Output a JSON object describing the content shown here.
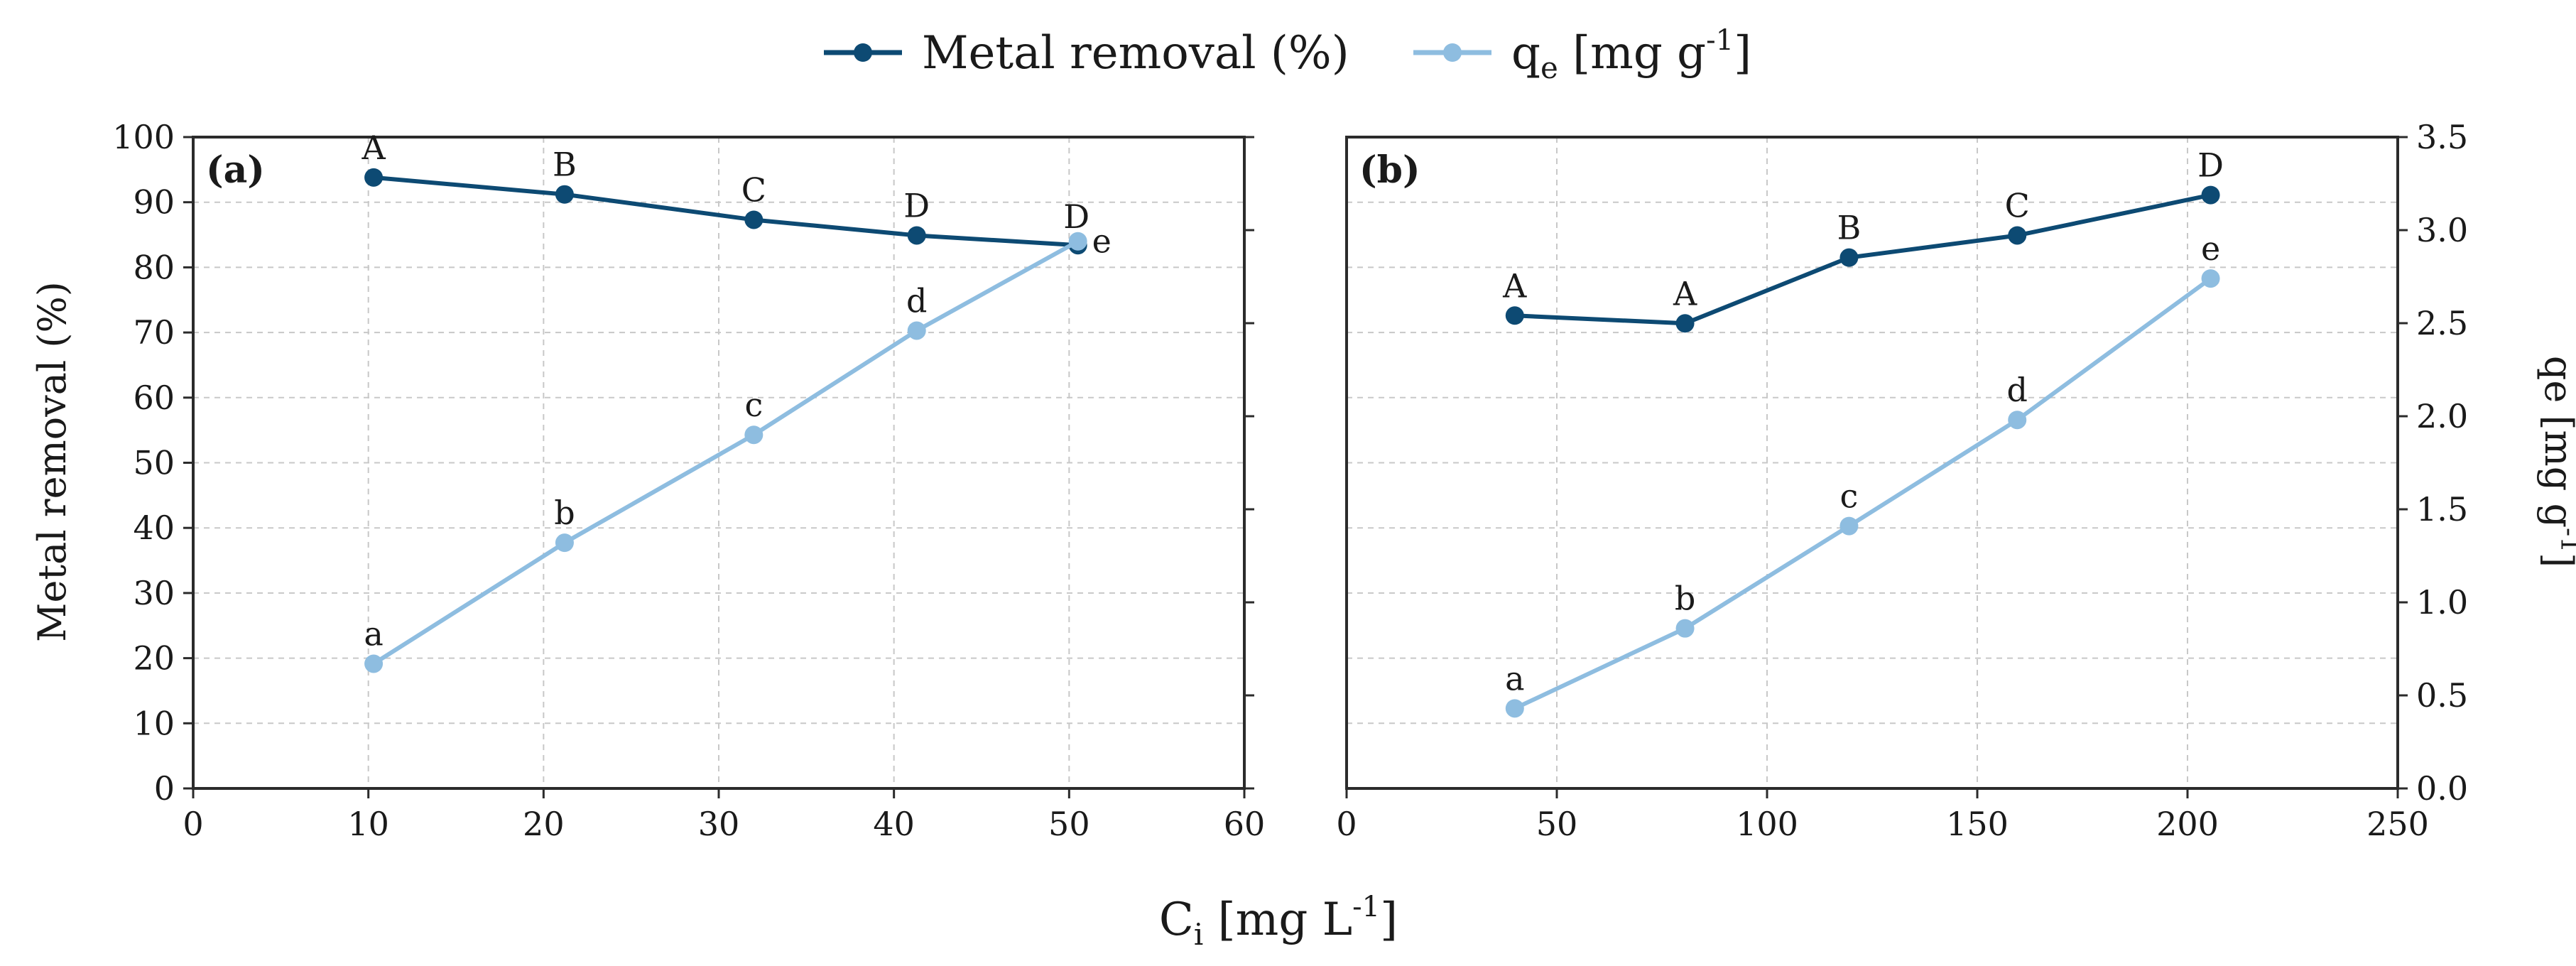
{
  "legend": {
    "metal_label": "Metal removal (%)",
    "qe_main": "q",
    "qe_sub": "e",
    "qe_rest": " [mg g",
    "qe_sup": "-1",
    "qe_close": "]"
  },
  "x_axis_title": {
    "main": "C",
    "sub": "i",
    "rest": " [mg L",
    "sup": "-1",
    "close": "]"
  },
  "y_left_title": "Metal removal (%)",
  "y_right_title": {
    "main": "qe [mg g",
    "sup": "-1",
    "close": "]"
  },
  "colors": {
    "metal": "#0d4a73",
    "qe": "#8ebde0"
  },
  "chart_data": [
    {
      "type": "line",
      "panel": "(a)",
      "xlim": [
        0,
        60
      ],
      "xticks": [
        0,
        10,
        20,
        30,
        40,
        50,
        60
      ],
      "ylim_left": [
        0,
        100
      ],
      "yticks_left": [
        0,
        10,
        20,
        30,
        40,
        50,
        60,
        70,
        80,
        90,
        100
      ],
      "ylim_right": [
        0,
        3.5
      ],
      "yticks_right": [],
      "series": [
        {
          "name": "Metal removal (%)",
          "axis": "left",
          "x": [
            10.3,
            21.2,
            32.0,
            41.3,
            50.5
          ],
          "values": [
            93.8,
            91.2,
            87.3,
            84.9,
            83.4
          ],
          "labels": [
            "A",
            "B",
            "C",
            "D",
            "D"
          ]
        },
        {
          "name": "qe [mg g-1]",
          "axis": "right",
          "x": [
            10.3,
            21.2,
            32.0,
            41.3,
            50.5
          ],
          "values": [
            0.67,
            1.32,
            1.9,
            2.46,
            2.94
          ],
          "labels": [
            "a",
            "b",
            "c",
            "d",
            "e"
          ]
        }
      ]
    },
    {
      "type": "line",
      "panel": "(b)",
      "xlim": [
        0,
        250
      ],
      "xticks": [
        0,
        50,
        100,
        150,
        200,
        250
      ],
      "ylim_left": [
        0,
        100
      ],
      "yticks_left": [],
      "ylim_right": [
        0,
        3.5
      ],
      "yticks_right": [
        "0.0",
        "0.5",
        "1.0",
        "1.5",
        "2.0",
        "2.5",
        "3.0",
        "3.5"
      ],
      "series": [
        {
          "name": "Metal removal (%)",
          "axis": "left",
          "x": [
            40,
            80.5,
            119.5,
            159.5,
            205.5
          ],
          "values": [
            72.6,
            71.4,
            81.5,
            84.9,
            91.1
          ],
          "labels": [
            "A",
            "A",
            "B",
            "C",
            "D"
          ]
        },
        {
          "name": "qe [mg g-1]",
          "axis": "right",
          "x": [
            40,
            80.5,
            119.5,
            159.5,
            205.5
          ],
          "values": [
            0.43,
            0.86,
            1.41,
            1.98,
            2.74
          ],
          "labels": [
            "a",
            "b",
            "c",
            "d",
            "e"
          ]
        }
      ]
    }
  ]
}
